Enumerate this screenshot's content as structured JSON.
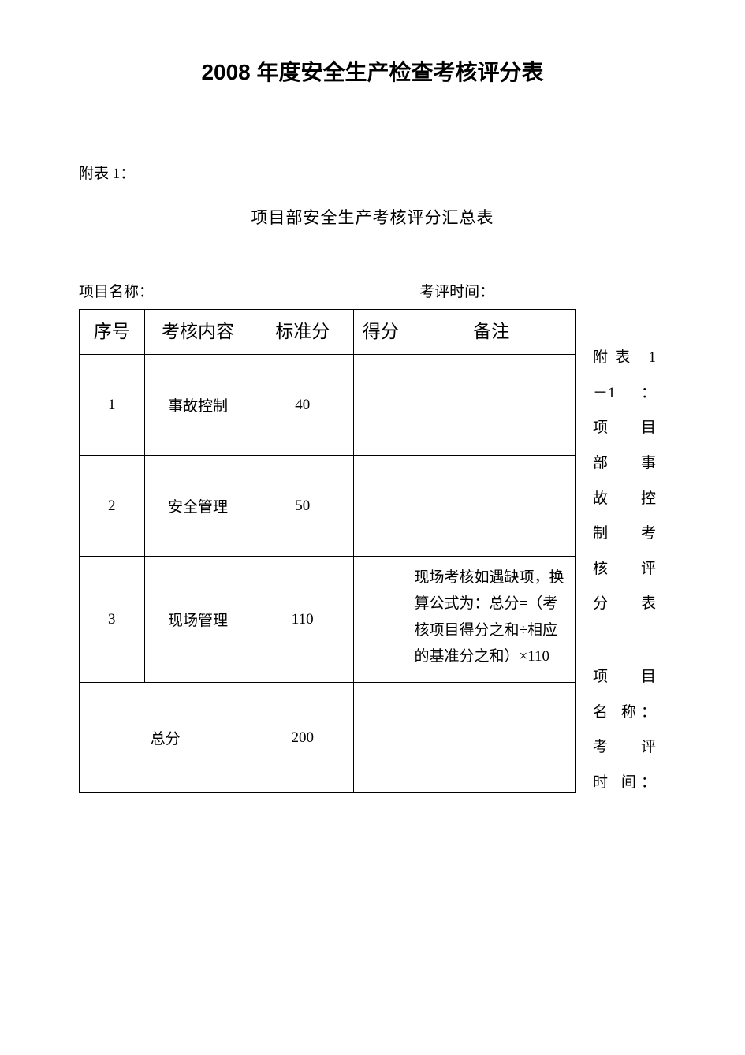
{
  "page_title": "2008 年度安全生产检查考核评分表",
  "appendix_label": "附表 1：",
  "subtitle": "项目部安全生产考核评分汇总表",
  "info": {
    "project_name_label": "项目名称：",
    "eval_time_label": "考评时间："
  },
  "table": {
    "headers": {
      "seq": "序号",
      "content": "考核内容",
      "standard": "标准分",
      "score": "得分",
      "note": "备注"
    },
    "rows": [
      {
        "seq": "1",
        "content": "事故控制",
        "standard": "40",
        "score": "",
        "note": ""
      },
      {
        "seq": "2",
        "content": "安全管理",
        "standard": "50",
        "score": "",
        "note": ""
      },
      {
        "seq": "3",
        "content": "现场管理",
        "standard": "110",
        "score": "",
        "note": "现场考核如遇缺项，换算公式为：总分=（考核项目得分之和÷相应的基准分之和）×110"
      }
    ],
    "total": {
      "label": "总分",
      "standard": "200",
      "score": "",
      "note": ""
    }
  },
  "side": {
    "block1_line1": "附表 1",
    "block1_line2": "－1：",
    "block1_line3": "项目",
    "block1_line4": "部事",
    "block1_line5": "故控",
    "block1_line6": "制考",
    "block1_line7": "核评",
    "block1_line8": "分表",
    "block2_line1": "项　目",
    "block2_line2": "名 称：",
    "block2_line3": "考　评",
    "block2_line4": "时 间："
  },
  "colors": {
    "text": "#000000",
    "background": "#ffffff",
    "border": "#000000"
  }
}
